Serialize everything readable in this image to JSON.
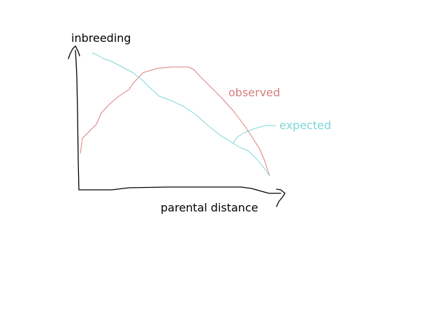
{
  "labels": {
    "y_axis": "inbreeding",
    "x_axis": "parental distance",
    "observed": "observed",
    "expected": "expected"
  },
  "colors": {
    "background": "#ffffff",
    "axes": "#000000",
    "text": "#000000",
    "observed": "#d97f7f",
    "expected": "#7fd6d6"
  }
}
